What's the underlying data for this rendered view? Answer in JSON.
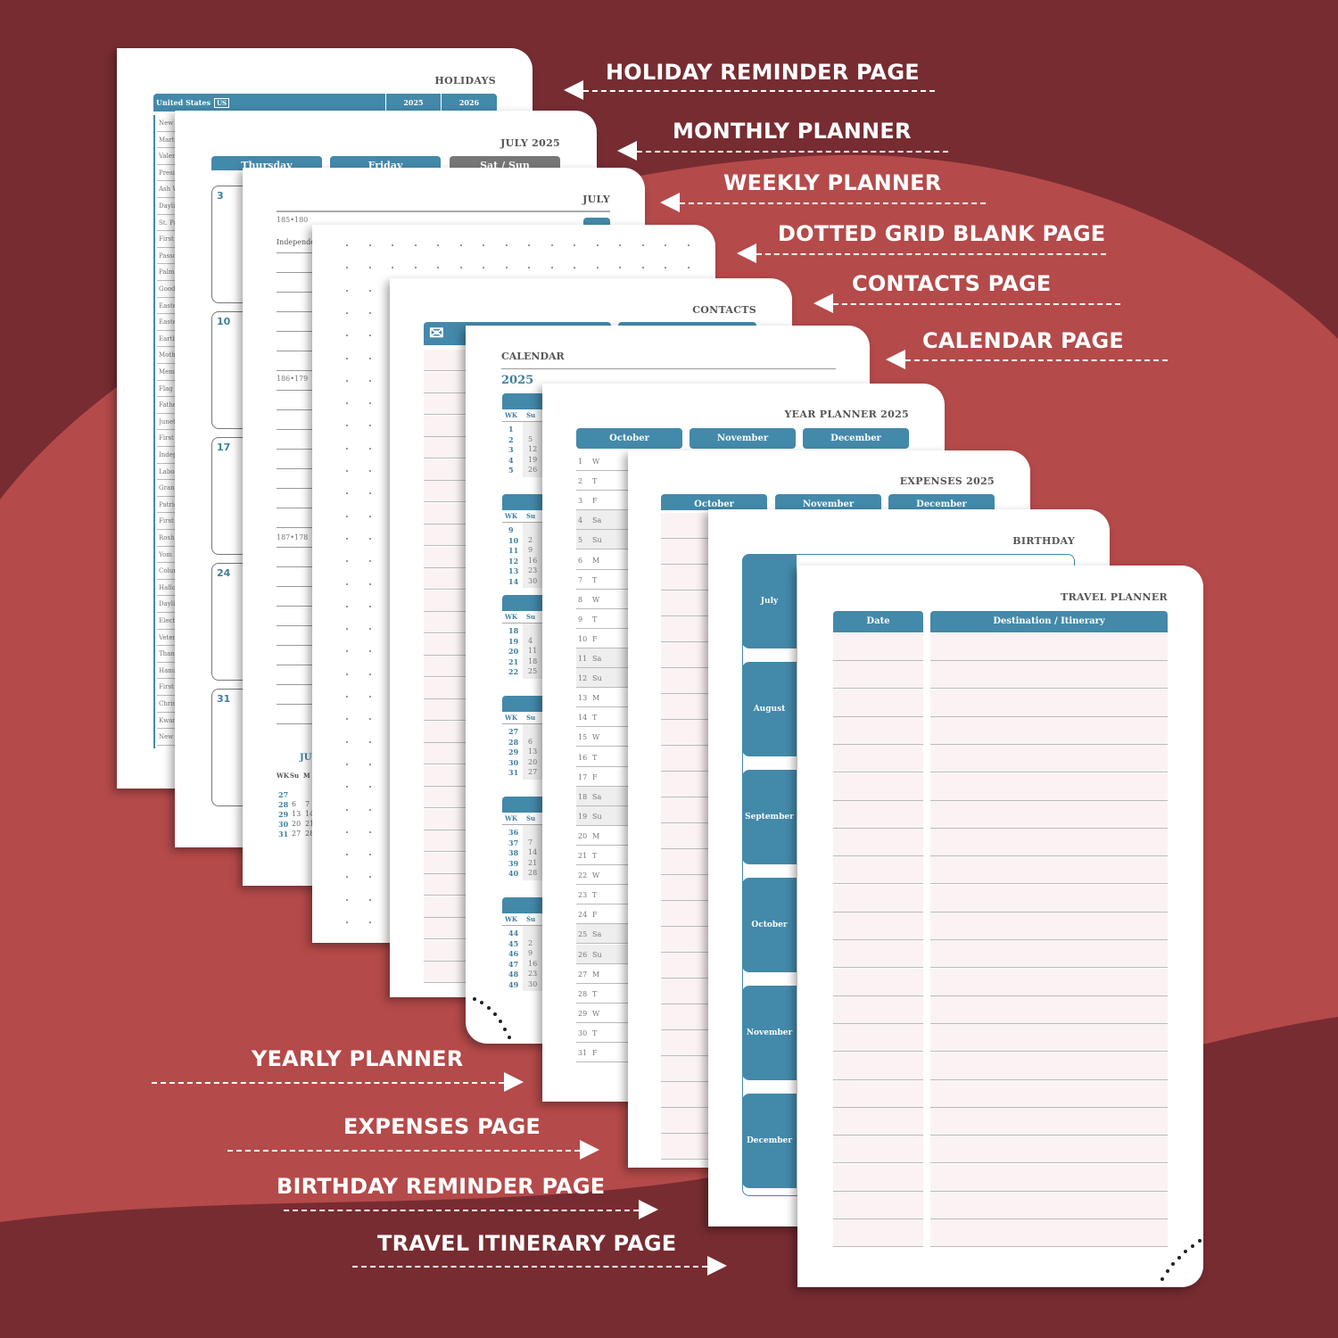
{
  "colors": {
    "background": "#772c31",
    "accent_red": "#b54a4a",
    "teal": "#4389aa",
    "gray_header": "#777777"
  },
  "labels_right": [
    "HOLIDAY REMINDER PAGE",
    "MONTHLY PLANNER",
    "WEEKLY PLANNER",
    "DOTTED GRID BLANK PAGE",
    "CONTACTS PAGE",
    "CALENDAR PAGE"
  ],
  "labels_left": [
    "YEARLY PLANNER",
    "EXPENSES PAGE",
    "BIRTHDAY REMINDER PAGE",
    "TRAVEL ITINERARY PAGE"
  ],
  "holidays": {
    "title": "HOLIDAYS",
    "country": "United States",
    "country_code": "US",
    "years": [
      "2025",
      "2026"
    ],
    "rows": [
      "New Ye",
      "Martin",
      "Valenti",
      "Preside",
      "Ash We",
      "Dayligh",
      "St. Pat",
      "First D",
      "Passov",
      "Palm Su",
      "Good F",
      "Easter",
      "Easter",
      "Earth D",
      "Mother",
      "Memor",
      "Flag Da",
      "Father",
      "Junete",
      "First D",
      "Indepe",
      "Labor",
      "Grandp",
      "Patriot",
      "First D",
      "Rosh H",
      "Yom Ki",
      "Colum",
      "Hallow",
      "Dayligh",
      "Election",
      "Veteran",
      "Thanks",
      "Hanuk",
      "First D",
      "Christ",
      "Kwanz",
      "New Ye"
    ]
  },
  "monthly": {
    "title": "JULY 2025",
    "headers": [
      "Thursday",
      "Friday",
      "Sat / Sun"
    ],
    "days": [
      "3",
      "10",
      "17",
      "24",
      "31"
    ]
  },
  "weekly": {
    "title": "JULY",
    "entries": [
      {
        "label": "185•180",
        "note": "Independe"
      },
      {
        "label": "186•179",
        "note": ""
      },
      {
        "label": "187•178",
        "note": ""
      }
    ],
    "mini": {
      "title": "JU",
      "header": [
        "WK",
        "Su",
        "M"
      ],
      "rows": [
        [
          "27",
          "",
          ""
        ],
        [
          "28",
          "6",
          "7"
        ],
        [
          "29",
          "13",
          "14"
        ],
        [
          "30",
          "20",
          "21"
        ],
        [
          "31",
          "27",
          "28"
        ]
      ]
    }
  },
  "contacts": {
    "title": "CONTACTS",
    "icon": "envelope-icon"
  },
  "calendar": {
    "title": "CALENDAR",
    "year": "2025",
    "header": [
      "WK",
      "Su"
    ],
    "blocks": [
      {
        "wk": [
          "1",
          "2",
          "3",
          "4",
          "5"
        ],
        "su": [
          "",
          "5",
          "12",
          "19",
          "26"
        ]
      },
      {
        "wk": [
          "9",
          "10",
          "11",
          "12",
          "13",
          "14"
        ],
        "su": [
          "",
          "2",
          "9",
          "16",
          "23",
          "30"
        ]
      },
      {
        "wk": [
          "18",
          "19",
          "20",
          "21",
          "22"
        ],
        "su": [
          "",
          "4",
          "11",
          "18",
          "25"
        ]
      },
      {
        "wk": [
          "27",
          "28",
          "29",
          "30",
          "31"
        ],
        "su": [
          "",
          "6",
          "13",
          "20",
          "27"
        ]
      },
      {
        "wk": [
          "36",
          "37",
          "38",
          "39",
          "40"
        ],
        "su": [
          "",
          "7",
          "14",
          "21",
          "28"
        ]
      },
      {
        "wk": [
          "44",
          "45",
          "46",
          "47",
          "48",
          "49"
        ],
        "su": [
          "",
          "2",
          "9",
          "16",
          "23",
          "30"
        ]
      }
    ]
  },
  "year_planner": {
    "title": "YEAR PLANNER 2025",
    "months": [
      "October",
      "November",
      "December"
    ],
    "days": [
      "W",
      "T",
      "F",
      "Sa",
      "Su",
      "M",
      "T",
      "W",
      "T",
      "F",
      "Sa",
      "Su",
      "M",
      "T",
      "W",
      "T",
      "F",
      "Sa",
      "Su",
      "M",
      "T",
      "W",
      "T",
      "F",
      "Sa",
      "Su",
      "M",
      "T",
      "W",
      "T",
      "F"
    ]
  },
  "expenses": {
    "title": "EXPENSES 2025",
    "months": [
      "October",
      "November",
      "December"
    ]
  },
  "birthday": {
    "title": "BIRTHDAY",
    "months": [
      "July",
      "August",
      "September",
      "October",
      "November",
      "December"
    ]
  },
  "travel": {
    "title": "TRAVEL PLANNER",
    "headers": [
      "Date",
      "Destination / Itinerary"
    ]
  }
}
